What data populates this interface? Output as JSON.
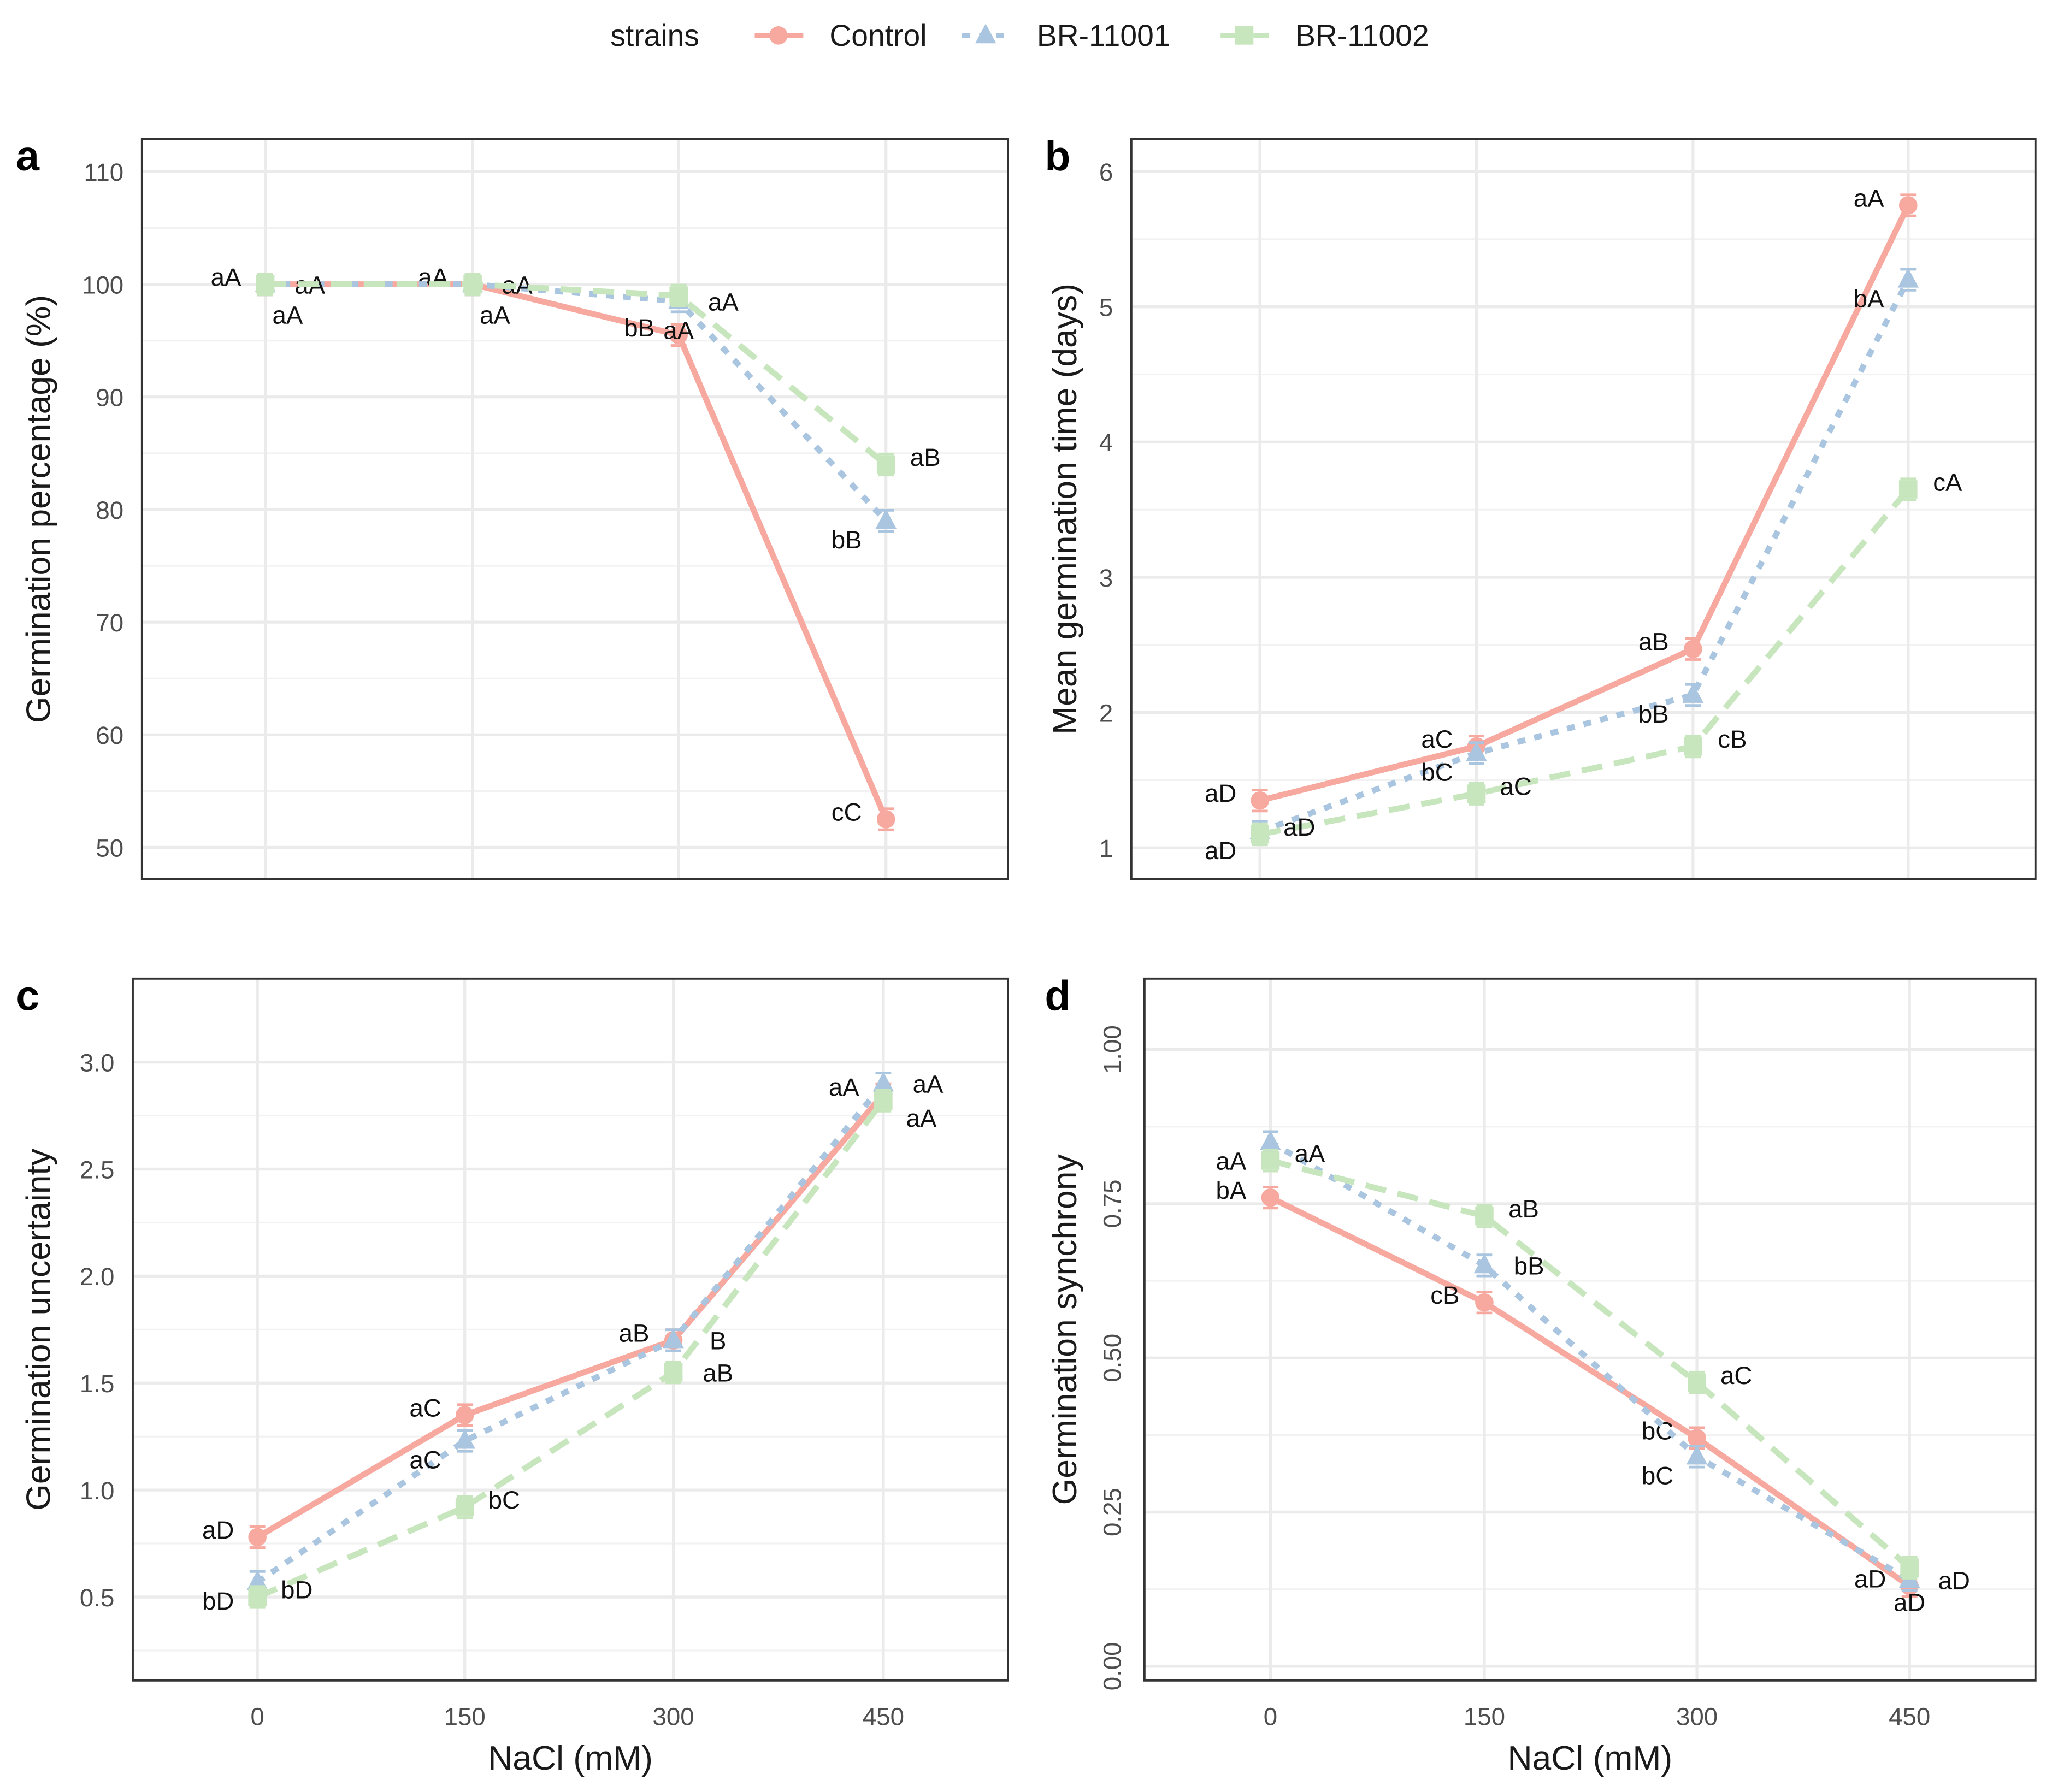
{
  "legend": {
    "title": "strains",
    "entries": [
      "Control",
      "BR-11001",
      "BR-11002"
    ]
  },
  "colors": {
    "Control": "#F7A9A0",
    "BR-11001": "#A9C5DF",
    "BR-11002": "#C8E6BE"
  },
  "chart_data": [
    {
      "type": "line",
      "panel": "a",
      "xlabel": "",
      "ylabel": "Germination percentage (%)",
      "x": [
        0,
        150,
        300,
        450
      ],
      "xticks": [
        "0",
        "150",
        "300",
        "450"
      ],
      "show_xticks": false,
      "ylim": [
        47.2,
        112.9
      ],
      "yticks": [
        50,
        60,
        70,
        80,
        90,
        100,
        110
      ],
      "grid": true,
      "series": [
        {
          "name": "Control",
          "values": [
            100,
            100,
            95.5,
            52.5
          ],
          "labels": [
            "aA",
            "aA",
            "bB",
            "cC"
          ]
        },
        {
          "name": "BR-11001",
          "values": [
            100,
            100,
            98.5,
            79
          ],
          "labels": [
            "aA",
            "aA",
            "aA",
            "bB"
          ]
        },
        {
          "name": "BR-11002",
          "values": [
            100,
            100,
            99,
            84
          ],
          "labels": [
            "aA",
            "aA",
            "aA",
            "aB"
          ]
        }
      ]
    },
    {
      "type": "line",
      "panel": "b",
      "xlabel": "",
      "ylabel": "Mean germination time (days)",
      "x": [
        0,
        150,
        300,
        450
      ],
      "xticks": [
        "0",
        "150",
        "300",
        "450"
      ],
      "show_xticks": false,
      "ylim": [
        0.77,
        6.24
      ],
      "yticks": [
        1,
        2,
        3,
        4,
        5,
        6
      ],
      "grid": true,
      "series": [
        {
          "name": "Control",
          "values": [
            1.35,
            1.75,
            2.47,
            5.75
          ],
          "labels": [
            "aD",
            "aC",
            "aB",
            "aA"
          ]
        },
        {
          "name": "BR-11001",
          "values": [
            1.12,
            1.7,
            2.13,
            5.2
          ],
          "labels": [
            "aD",
            "bC",
            "bB",
            "bA"
          ]
        },
        {
          "name": "BR-11002",
          "values": [
            1.1,
            1.4,
            1.75,
            3.65
          ],
          "labels": [
            "aD",
            "aC",
            "cB",
            "cA"
          ]
        }
      ]
    },
    {
      "type": "line",
      "panel": "c",
      "xlabel": "NaCl (mM)",
      "ylabel": "Germination uncertainty",
      "x": [
        0,
        150,
        300,
        450
      ],
      "xticks": [
        "0",
        "150",
        "300",
        "450"
      ],
      "show_xticks": true,
      "ylim": [
        0.11,
        3.39
      ],
      "yticks": [
        "0.5",
        "1.0",
        "1.5",
        "2.0",
        "2.5",
        "3.0"
      ],
      "grid": true,
      "series": [
        {
          "name": "Control",
          "values": [
            0.78,
            1.35,
            1.7,
            2.85
          ],
          "labels": [
            "aD",
            "aC",
            "aB",
            "aA"
          ]
        },
        {
          "name": "BR-11001",
          "values": [
            0.57,
            1.23,
            1.7,
            2.9
          ],
          "labels": [
            "bD",
            "aC",
            "B",
            "aA"
          ]
        },
        {
          "name": "BR-11002",
          "values": [
            0.5,
            0.92,
            1.55,
            2.82
          ],
          "labels": [
            "bD",
            "bC",
            "aB",
            "aA"
          ]
        }
      ]
    },
    {
      "type": "line",
      "panel": "d",
      "xlabel": "NaCl (mM)",
      "ylabel": "Germination synchrony",
      "x": [
        0,
        150,
        300,
        450
      ],
      "xticks": [
        "0",
        "150",
        "300",
        "450"
      ],
      "show_xticks": true,
      "ylim": [
        -0.023,
        1.115
      ],
      "yticks": [
        "0.00",
        "0.25",
        "0.50",
        "0.75",
        "1.00"
      ],
      "grid": true,
      "series": [
        {
          "name": "Control",
          "values": [
            0.76,
            0.59,
            0.37,
            0.13
          ],
          "labels": [
            "bA",
            "cB",
            "bC",
            "aD"
          ]
        },
        {
          "name": "BR-11001",
          "values": [
            0.85,
            0.65,
            0.34,
            0.14
          ],
          "labels": [
            "aA",
            "bB",
            "bC",
            "aD"
          ]
        },
        {
          "name": "BR-11002",
          "values": [
            0.82,
            0.73,
            0.46,
            0.16
          ],
          "labels": [
            "aA",
            "aB",
            "aC",
            "aD"
          ]
        }
      ]
    }
  ]
}
